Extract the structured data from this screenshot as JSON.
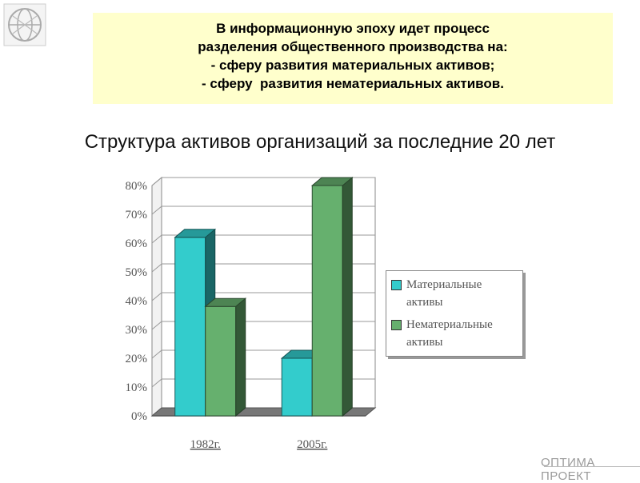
{
  "banner": {
    "lines": [
      "В информационную эпоху идет процесс",
      "разделения общественного производства на:",
      "- сферу развития материальных активов;",
      "- сферу  развития нематериальных активов."
    ]
  },
  "subtitle": "Структура активов организаций за последние 20 лет",
  "footer": {
    "brand": "ОПТИМА ПРОЕКТ"
  },
  "colors": {
    "series1": "#33cccc",
    "series2": "#66b06e",
    "banner_bg": "#ffffcc"
  },
  "chart_data": {
    "type": "bar",
    "categories": [
      "1982г.",
      "2005г."
    ],
    "series": [
      {
        "name": "Материальные активы",
        "values": [
          62,
          20
        ]
      },
      {
        "name": "Нематериальные активы",
        "values": [
          38,
          80
        ]
      }
    ],
    "yticks": [
      "0%",
      "10%",
      "20%",
      "30%",
      "40%",
      "50%",
      "60%",
      "70%",
      "80%"
    ],
    "ylim": [
      0,
      80
    ],
    "grid": true,
    "legend": "right",
    "style": "3d-clustered"
  }
}
